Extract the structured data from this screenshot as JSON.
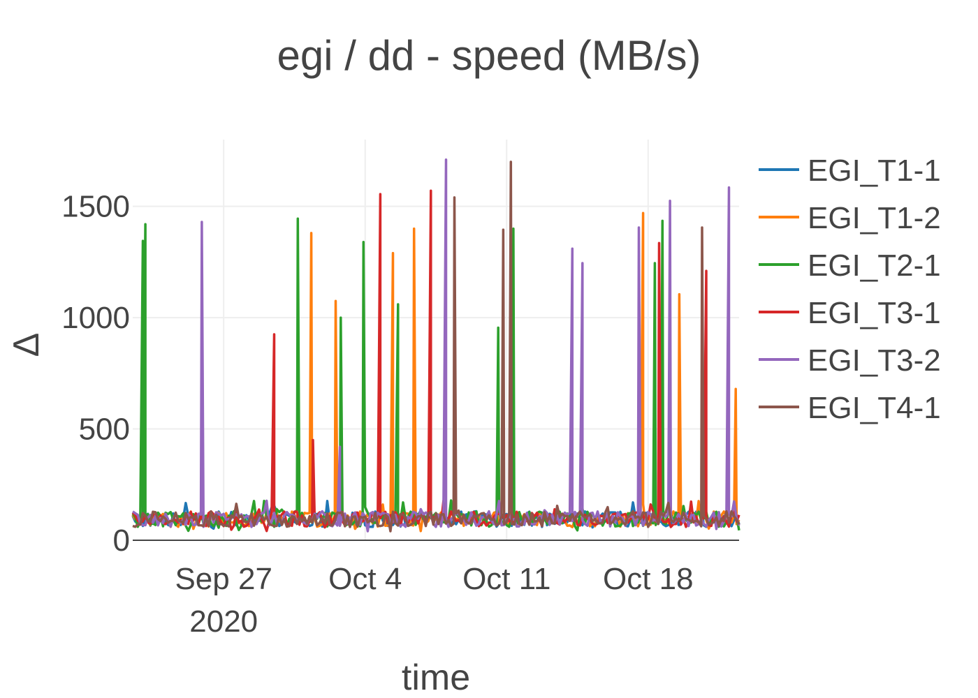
{
  "chart_data": {
    "type": "line",
    "title": "egi / dd - speed (MB/s)",
    "xlabel": "time",
    "ylabel": "Δ",
    "x_range": [
      "2020-09-22T12:00",
      "2020-10-22T12:00"
    ],
    "ylim": [
      0,
      1800
    ],
    "y_ticks": [
      {
        "value": 0,
        "label": "0"
      },
      {
        "value": 500,
        "label": "500"
      },
      {
        "value": 1000,
        "label": "1000"
      },
      {
        "value": 1500,
        "label": "1500"
      }
    ],
    "x_ticks": [
      {
        "date": "2020-09-27",
        "label": "Sep 27",
        "sublabel": "2020"
      },
      {
        "date": "2020-10-04",
        "label": "Oct 4",
        "sublabel": ""
      },
      {
        "date": "2020-10-11",
        "label": "Oct 11",
        "sublabel": ""
      },
      {
        "date": "2020-10-18",
        "label": "Oct 18",
        "sublabel": ""
      }
    ],
    "legend_position": "right",
    "grid": true,
    "baseline_range": [
      60,
      130
    ],
    "series": [
      {
        "name": "EGI_T1-1",
        "color": "#1f77b4",
        "spikes": []
      },
      {
        "name": "EGI_T1-2",
        "color": "#ff7f0e",
        "spikes": [
          {
            "date": "2020-10-01T08:00",
            "value": 1380
          },
          {
            "date": "2020-10-02T13:00",
            "value": 1075
          },
          {
            "date": "2020-10-05T09:00",
            "value": 1290
          },
          {
            "date": "2020-10-06T10:00",
            "value": 1400
          },
          {
            "date": "2020-10-17T18:00",
            "value": 1470
          },
          {
            "date": "2020-10-19T13:00",
            "value": 1105
          },
          {
            "date": "2020-10-22T08:00",
            "value": 680
          }
        ]
      },
      {
        "name": "EGI_T2-1",
        "color": "#2ca02c",
        "spikes": [
          {
            "date": "2020-09-23T00:00",
            "value": 1345
          },
          {
            "date": "2020-09-23T03:00",
            "value": 1420
          },
          {
            "date": "2020-09-30T16:00",
            "value": 1445
          },
          {
            "date": "2020-10-02T19:00",
            "value": 1000
          },
          {
            "date": "2020-10-03T22:00",
            "value": 1340
          },
          {
            "date": "2020-10-05T15:00",
            "value": 1060
          },
          {
            "date": "2020-10-10T14:00",
            "value": 955
          },
          {
            "date": "2020-10-11T08:00",
            "value": 1400
          },
          {
            "date": "2020-10-18T08:00",
            "value": 1245
          },
          {
            "date": "2020-10-18T17:00",
            "value": 1435
          }
        ]
      },
      {
        "name": "EGI_T3-1",
        "color": "#d62728",
        "spikes": [
          {
            "date": "2020-09-29T12:00",
            "value": 925
          },
          {
            "date": "2020-10-01T10:00",
            "value": 450
          },
          {
            "date": "2020-10-04T18:00",
            "value": 1555
          },
          {
            "date": "2020-10-07T06:00",
            "value": 1570
          },
          {
            "date": "2020-10-18T13:00",
            "value": 1335
          },
          {
            "date": "2020-10-20T21:00",
            "value": 1210
          }
        ]
      },
      {
        "name": "EGI_T3-2",
        "color": "#9467bd",
        "spikes": [
          {
            "date": "2020-09-25T22:00",
            "value": 1430
          },
          {
            "date": "2020-10-02T18:00",
            "value": 420
          },
          {
            "date": "2020-10-08T00:00",
            "value": 1710
          },
          {
            "date": "2020-10-14T06:00",
            "value": 1310
          },
          {
            "date": "2020-10-14T18:00",
            "value": 1245
          },
          {
            "date": "2020-10-17T13:00",
            "value": 1405
          },
          {
            "date": "2020-10-19T02:00",
            "value": 1525
          },
          {
            "date": "2020-10-22T00:00",
            "value": 1585
          }
        ]
      },
      {
        "name": "EGI_T4-1",
        "color": "#8c564b",
        "spikes": [
          {
            "date": "2020-10-08T10:00",
            "value": 1540
          },
          {
            "date": "2020-10-10T20:00",
            "value": 1395
          },
          {
            "date": "2020-10-11T05:00",
            "value": 1700
          },
          {
            "date": "2020-10-20T16:00",
            "value": 1405
          }
        ]
      }
    ]
  }
}
